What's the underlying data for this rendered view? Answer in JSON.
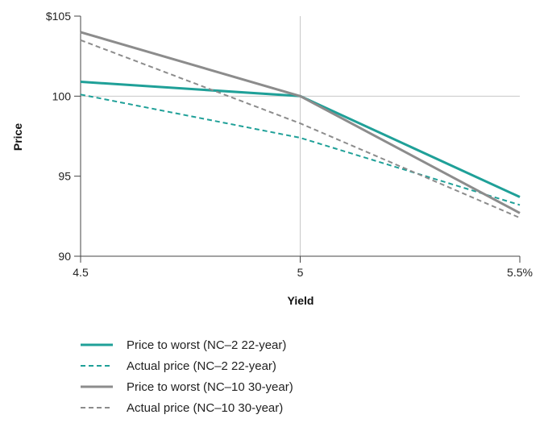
{
  "chart_data": {
    "type": "line",
    "xlabel": "Yield",
    "ylabel": "Price",
    "xlim": [
      4.5,
      5.5
    ],
    "ylim": [
      90,
      105
    ],
    "x_ticks": [
      {
        "value": 4.5,
        "label": "4.5"
      },
      {
        "value": 5,
        "label": "5"
      },
      {
        "value": 5.5,
        "label": "5.5%"
      }
    ],
    "y_ticks": [
      {
        "value": 90,
        "label": "90"
      },
      {
        "value": 95,
        "label": "95"
      },
      {
        "value": 100,
        "label": "100"
      },
      {
        "value": 105,
        "label": "$105"
      }
    ],
    "reference_lines": {
      "x": 5,
      "y": 100
    },
    "series": [
      {
        "name": "Price to worst (NC–2 22-year)",
        "color": "#1fa098",
        "dashed": false,
        "points": [
          [
            4.5,
            100.9
          ],
          [
            5,
            100.0
          ],
          [
            5.5,
            93.7
          ]
        ]
      },
      {
        "name": "Actual price (NC–2 22-year)",
        "color": "#1fa098",
        "dashed": true,
        "points": [
          [
            4.5,
            100.1
          ],
          [
            5,
            97.4
          ],
          [
            5.5,
            93.2
          ]
        ]
      },
      {
        "name": "Price to worst (NC–10 30-year)",
        "color": "#8c8c8c",
        "dashed": false,
        "points": [
          [
            4.5,
            104.0
          ],
          [
            5,
            100.0
          ],
          [
            5.5,
            92.7
          ]
        ]
      },
      {
        "name": "Actual price (NC–10 30-year)",
        "color": "#8c8c8c",
        "dashed": true,
        "points": [
          [
            4.5,
            103.5
          ],
          [
            5,
            98.3
          ],
          [
            5.5,
            92.4
          ]
        ]
      }
    ],
    "legend_position": "bottom-left",
    "grid": false
  }
}
